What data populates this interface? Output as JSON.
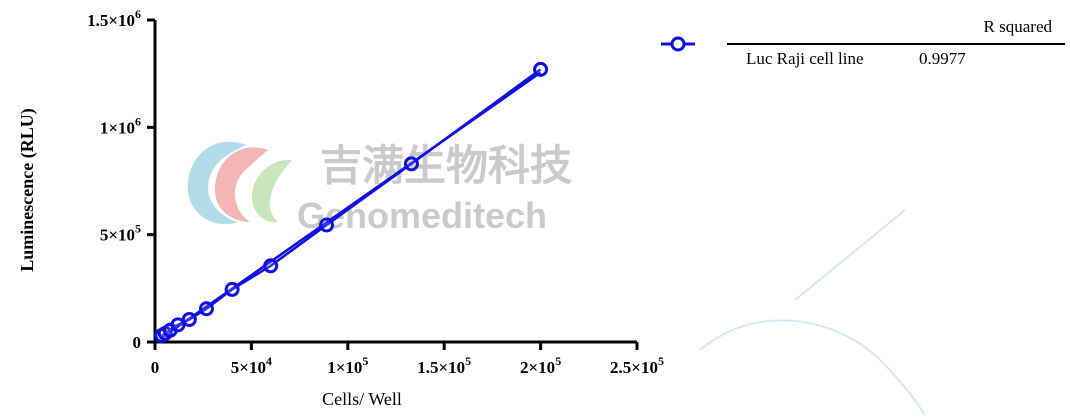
{
  "watermark": {
    "chinese_text": "吉满生物科技",
    "english_text": "Genomeditech"
  },
  "legend_table": {
    "header": "R squared",
    "rows": [
      {
        "label": "Luc Raji cell line",
        "value": "0.9977"
      }
    ]
  },
  "colors": {
    "series": "#1010e0",
    "axis": "#000000",
    "watermark_text": "#b9b9b9",
    "logo_red": "#f2a8a8",
    "logo_teal": "#9fd3e3",
    "logo_green": "#bfe0b0",
    "decor_line": "#d6e6fa"
  },
  "chart_data": {
    "type": "scatter",
    "title": "",
    "xlabel": "Cells/ Well",
    "ylabel": "Luminescence (RLU)",
    "xlim": [
      0,
      250000
    ],
    "ylim": [
      0,
      1500000
    ],
    "x_ticks": [
      0,
      50000,
      100000,
      150000,
      200000,
      250000
    ],
    "x_tick_labels": [
      {
        "mant": "0",
        "exp": ""
      },
      {
        "mant": "5×10",
        "exp": "4"
      },
      {
        "mant": "1×10",
        "exp": "5"
      },
      {
        "mant": "1.5×10",
        "exp": "5"
      },
      {
        "mant": "2×10",
        "exp": "5"
      },
      {
        "mant": "2.5×10",
        "exp": "5"
      }
    ],
    "y_ticks": [
      0,
      500000,
      1000000,
      1500000
    ],
    "y_tick_labels": [
      {
        "mant": "0",
        "exp": ""
      },
      {
        "mant": "5×10",
        "exp": "5"
      },
      {
        "mant": "1×10",
        "exp": "6"
      },
      {
        "mant": "1.5×10",
        "exp": "6"
      }
    ],
    "grid": false,
    "legend_position": "top-right",
    "series": [
      {
        "name": "Luc Raji cell line",
        "marker": "open-circle",
        "fit": "linear",
        "x": [
          3500,
          5300,
          7900,
          11900,
          17800,
          26700,
          40000,
          60000,
          89000,
          133000,
          200000
        ],
        "y": [
          30000,
          40000,
          55000,
          80000,
          105000,
          155000,
          245000,
          355000,
          545000,
          830000,
          1270000
        ]
      }
    ]
  }
}
